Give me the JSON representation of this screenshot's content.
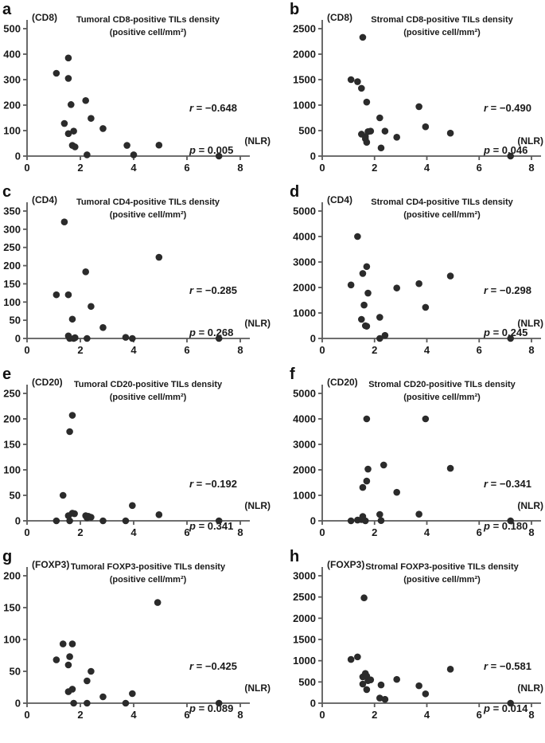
{
  "colors": {
    "point": "#2b2b2b",
    "axis": "#5a5a5a",
    "text": "#1a1a1a"
  },
  "chart_data": [
    {
      "letter": "a",
      "type": "scatter",
      "title": "Tumoral CD8-positive TILs density",
      "title2": "(positive cell/mm²)",
      "ylabel": "(CD8)",
      "xlabel": "(NLR)",
      "r": {
        "var": "r",
        "rest": " = −0.648"
      },
      "p": {
        "var": "p",
        "rest": " = 0.005"
      },
      "xlim": [
        0,
        8
      ],
      "xticks": [
        0,
        2,
        4,
        6,
        8
      ],
      "ylim": [
        0,
        500
      ],
      "yticks": [
        0,
        100,
        200,
        300,
        400,
        500
      ],
      "points": [
        [
          1.1,
          325
        ],
        [
          1.55,
          385
        ],
        [
          1.55,
          305
        ],
        [
          1.4,
          128
        ],
        [
          1.65,
          202
        ],
        [
          1.55,
          88
        ],
        [
          1.75,
          98
        ],
        [
          1.7,
          42
        ],
        [
          1.8,
          36
        ],
        [
          2.2,
          218
        ],
        [
          2.25,
          5
        ],
        [
          2.4,
          148
        ],
        [
          2.85,
          108
        ],
        [
          3.75,
          42
        ],
        [
          4.0,
          5
        ],
        [
          4.95,
          43
        ],
        [
          7.2,
          0
        ]
      ]
    },
    {
      "letter": "b",
      "type": "scatter",
      "title": "Stromal CD8-positive TILs density",
      "title2": "(positive cell/mm²)",
      "ylabel": "(CD8)",
      "xlabel": "(NLR)",
      "r": {
        "var": "r",
        "rest": " = −0.490"
      },
      "p": {
        "var": "p",
        "rest": " = 0.046"
      },
      "xlim": [
        0,
        8
      ],
      "xticks": [
        0,
        2,
        4,
        6,
        8
      ],
      "ylim": [
        0,
        2500
      ],
      "yticks": [
        0,
        500,
        1000,
        1500,
        2000,
        2500
      ],
      "points": [
        [
          1.1,
          1500
        ],
        [
          1.35,
          1460
        ],
        [
          1.5,
          1330
        ],
        [
          1.55,
          2330
        ],
        [
          1.7,
          1060
        ],
        [
          1.5,
          430
        ],
        [
          1.65,
          380
        ],
        [
          1.65,
          340
        ],
        [
          1.7,
          270
        ],
        [
          1.75,
          480
        ],
        [
          1.85,
          490
        ],
        [
          2.2,
          750
        ],
        [
          2.25,
          160
        ],
        [
          2.4,
          490
        ],
        [
          2.85,
          370
        ],
        [
          3.7,
          970
        ],
        [
          3.95,
          575
        ],
        [
          4.9,
          450
        ],
        [
          7.2,
          0
        ]
      ]
    },
    {
      "letter": "c",
      "type": "scatter",
      "title": "Tumoral CD4-positive TILs density",
      "title2": "(positive cell/mm²)",
      "ylabel": "(CD4)",
      "xlabel": "(NLR)",
      "r": {
        "var": "r",
        "rest": " = −0.285"
      },
      "p": {
        "var": "p",
        "rest": " = 0.268"
      },
      "xlim": [
        0,
        8
      ],
      "xticks": [
        0,
        2,
        4,
        6,
        8
      ],
      "ylim": [
        0,
        350
      ],
      "yticks": [
        0,
        50,
        100,
        150,
        200,
        250,
        300,
        350
      ],
      "points": [
        [
          1.4,
          320
        ],
        [
          1.1,
          120
        ],
        [
          1.55,
          120
        ],
        [
          1.7,
          53
        ],
        [
          1.55,
          7
        ],
        [
          1.6,
          0
        ],
        [
          1.75,
          0
        ],
        [
          1.8,
          2
        ],
        [
          2.2,
          183
        ],
        [
          2.25,
          0
        ],
        [
          2.4,
          88
        ],
        [
          2.85,
          30
        ],
        [
          3.7,
          3
        ],
        [
          3.95,
          0
        ],
        [
          4.95,
          223
        ],
        [
          7.2,
          0
        ]
      ]
    },
    {
      "letter": "d",
      "type": "scatter",
      "title": "Stromal CD4-positive TILs density",
      "title2": "(positive cell/mm²)",
      "ylabel": "(CD4)",
      "xlabel": "(NLR)",
      "r": {
        "var": "r",
        "rest": " = −0.298"
      },
      "p": {
        "var": "p",
        "rest": " = 0.245"
      },
      "xlim": [
        0,
        8
      ],
      "xticks": [
        0,
        2,
        4,
        6,
        8
      ],
      "ylim": [
        0,
        5000
      ],
      "yticks": [
        0,
        1000,
        2000,
        3000,
        4000,
        5000
      ],
      "points": [
        [
          1.35,
          4000
        ],
        [
          1.1,
          2100
        ],
        [
          1.55,
          2550
        ],
        [
          1.7,
          2820
        ],
        [
          1.75,
          1780
        ],
        [
          1.6,
          1310
        ],
        [
          1.5,
          750
        ],
        [
          1.65,
          500
        ],
        [
          1.7,
          480
        ],
        [
          2.2,
          830
        ],
        [
          2.2,
          0
        ],
        [
          2.4,
          120
        ],
        [
          2.85,
          1980
        ],
        [
          3.7,
          2150
        ],
        [
          3.95,
          1220
        ],
        [
          4.9,
          2450
        ],
        [
          7.2,
          0
        ]
      ]
    },
    {
      "letter": "e",
      "type": "scatter",
      "title": "Tumoral CD20-positive TILs density",
      "title2": "(positive cell/mm²)",
      "ylabel": "(CD20)",
      "xlabel": "(NLR)",
      "r": {
        "var": "r",
        "rest": " = −0.192"
      },
      "p": {
        "var": "p",
        "rest": " = 0.341"
      },
      "xlim": [
        0,
        8
      ],
      "xticks": [
        0,
        2,
        4,
        6,
        8
      ],
      "ylim": [
        0,
        250
      ],
      "yticks": [
        0,
        50,
        100,
        150,
        200,
        250
      ],
      "points": [
        [
          1.7,
          207
        ],
        [
          1.6,
          175
        ],
        [
          1.35,
          50
        ],
        [
          1.1,
          0
        ],
        [
          1.55,
          10
        ],
        [
          1.6,
          0
        ],
        [
          1.7,
          15
        ],
        [
          1.78,
          14
        ],
        [
          2.2,
          10
        ],
        [
          2.25,
          6
        ],
        [
          2.3,
          9
        ],
        [
          2.4,
          7
        ],
        [
          2.85,
          0
        ],
        [
          3.7,
          0
        ],
        [
          3.95,
          30
        ],
        [
          4.95,
          12
        ],
        [
          7.2,
          0
        ]
      ]
    },
    {
      "letter": "f",
      "type": "scatter",
      "title": "Stromal CD20-positive TILs density",
      "title2": "(positive cell/mm²)",
      "ylabel": "(CD20)",
      "xlabel": "(NLR)",
      "r": {
        "var": "r",
        "rest": " = −0.341"
      },
      "p": {
        "var": "p",
        "rest": " = 0.180"
      },
      "xlim": [
        0,
        8
      ],
      "xticks": [
        0,
        2,
        4,
        6,
        8
      ],
      "ylim": [
        0,
        5000
      ],
      "yticks": [
        0,
        1000,
        2000,
        3000,
        4000,
        5000
      ],
      "points": [
        [
          1.7,
          4000
        ],
        [
          3.95,
          4000
        ],
        [
          1.75,
          2030
        ],
        [
          2.35,
          2190
        ],
        [
          4.9,
          2060
        ],
        [
          1.7,
          1560
        ],
        [
          1.55,
          1310
        ],
        [
          2.85,
          1120
        ],
        [
          1.1,
          0
        ],
        [
          1.35,
          30
        ],
        [
          1.5,
          50
        ],
        [
          1.55,
          170
        ],
        [
          1.65,
          0
        ],
        [
          2.2,
          250
        ],
        [
          2.25,
          10
        ],
        [
          3.7,
          260
        ],
        [
          7.2,
          0
        ]
      ]
    },
    {
      "letter": "g",
      "type": "scatter",
      "title": "Tumoral FOXP3-positive TILs density",
      "title2": "(positive cell/mm²)",
      "ylabel": "(FOXP3)",
      "xlabel": "(NLR)",
      "r": {
        "var": "r",
        "rest": " = −0.425"
      },
      "p": {
        "var": "p",
        "rest": " = 0.089"
      },
      "xlim": [
        0,
        8
      ],
      "xticks": [
        0,
        2,
        4,
        6,
        8
      ],
      "ylim": [
        0,
        200
      ],
      "yticks": [
        0,
        50,
        100,
        150,
        200
      ],
      "points": [
        [
          4.9,
          158
        ],
        [
          1.35,
          93
        ],
        [
          1.7,
          93
        ],
        [
          1.1,
          68
        ],
        [
          1.6,
          73
        ],
        [
          1.55,
          60
        ],
        [
          2.4,
          50
        ],
        [
          2.25,
          35
        ],
        [
          1.55,
          18
        ],
        [
          1.7,
          22
        ],
        [
          1.75,
          0
        ],
        [
          2.25,
          0
        ],
        [
          2.85,
          10
        ],
        [
          3.7,
          0
        ],
        [
          3.95,
          15
        ],
        [
          7.2,
          0
        ]
      ]
    },
    {
      "letter": "h",
      "type": "scatter",
      "title": "Stromal FOXP3-positive TILs density",
      "title2": "(positive cell/mm²)",
      "ylabel": "(FOXP3)",
      "xlabel": "(NLR)",
      "r": {
        "var": "r",
        "rest": " = −0.581"
      },
      "p": {
        "var": "p",
        "rest": " = 0.014"
      },
      "xlim": [
        0,
        8
      ],
      "xticks": [
        0,
        2,
        4,
        6,
        8
      ],
      "ylim": [
        0,
        3000
      ],
      "yticks": [
        0,
        500,
        1000,
        1500,
        2000,
        2500,
        3000
      ],
      "points": [
        [
          1.6,
          2480
        ],
        [
          1.1,
          1030
        ],
        [
          1.35,
          1090
        ],
        [
          1.55,
          620
        ],
        [
          1.65,
          700
        ],
        [
          1.7,
          640
        ],
        [
          1.75,
          530
        ],
        [
          1.85,
          550
        ],
        [
          1.55,
          450
        ],
        [
          1.7,
          320
        ],
        [
          2.25,
          430
        ],
        [
          2.2,
          120
        ],
        [
          2.4,
          90
        ],
        [
          2.85,
          560
        ],
        [
          3.7,
          410
        ],
        [
          3.95,
          220
        ],
        [
          4.9,
          800
        ],
        [
          7.2,
          0
        ]
      ]
    }
  ]
}
